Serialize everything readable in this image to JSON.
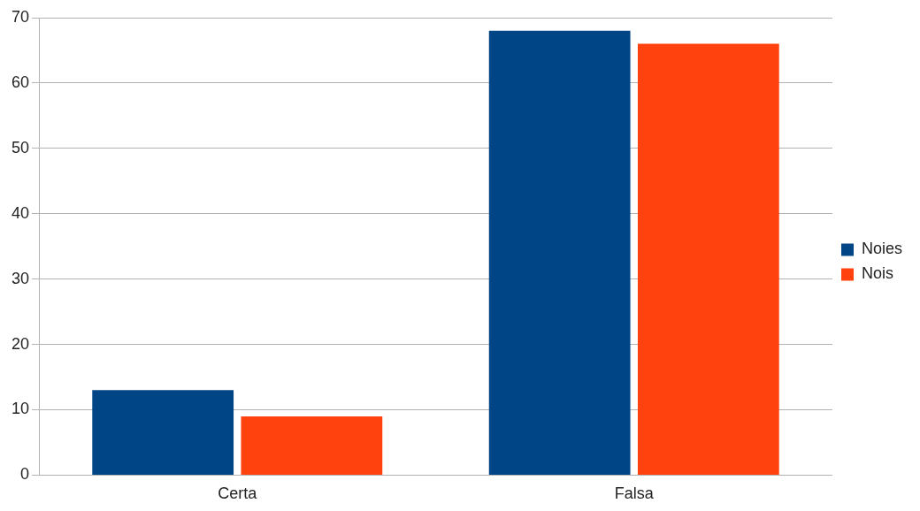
{
  "chart_data": {
    "type": "bar",
    "categories": [
      "Certa",
      "Falsa"
    ],
    "series": [
      {
        "name": "Noies",
        "color": "#004586",
        "values": [
          13,
          68
        ]
      },
      {
        "name": "Nois",
        "color": "#ff420e",
        "values": [
          9,
          66
        ]
      }
    ],
    "ylim": [
      0,
      70
    ],
    "yticks": [
      0,
      10,
      20,
      30,
      40,
      50,
      60,
      70
    ],
    "grid": "y",
    "legend": "right"
  }
}
